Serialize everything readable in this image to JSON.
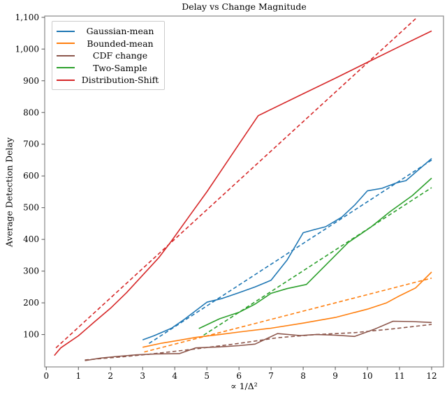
{
  "title": "Delay vs Change Magnitude",
  "chart_data": {
    "type": "line",
    "title": "Delay vs Change Magnitude",
    "xlabel": "∝ 1/Δ²",
    "ylabel": "Average Detection Delay",
    "xlim": [
      -0.05,
      12.37
    ],
    "ylim": [
      -2,
      1104
    ],
    "grid": false,
    "legend_position": "upper-left",
    "x_ticks": [
      {
        "value": 0,
        "label": "0"
      },
      {
        "value": 1,
        "label": "1"
      },
      {
        "value": 2,
        "label": "2"
      },
      {
        "value": 3,
        "label": "3"
      },
      {
        "value": 4,
        "label": "4"
      },
      {
        "value": 5,
        "label": "5"
      },
      {
        "value": 6,
        "label": "6"
      },
      {
        "value": 7,
        "label": "7"
      },
      {
        "value": 8,
        "label": "8"
      },
      {
        "value": 9,
        "label": "9"
      },
      {
        "value": 10,
        "label": "10"
      },
      {
        "value": 11,
        "label": "11"
      },
      {
        "value": 12,
        "label": "12"
      }
    ],
    "y_ticks": [
      {
        "value": 100,
        "label": "100"
      },
      {
        "value": 200,
        "label": "200"
      },
      {
        "value": 300,
        "label": "300"
      },
      {
        "value": 400,
        "label": "400"
      },
      {
        "value": 500,
        "label": "500"
      },
      {
        "value": 600,
        "label": "600"
      },
      {
        "value": 700,
        "label": "700"
      },
      {
        "value": 800,
        "label": "800"
      },
      {
        "value": 900,
        "label": "900"
      },
      {
        "value": 1000,
        "label": "1,000"
      },
      {
        "value": 1100,
        "label": "1,100"
      }
    ],
    "series": [
      {
        "name": "Gaussian-mean",
        "color": "#1f77b4",
        "solid": [
          [
            3.0,
            83
          ],
          [
            3.35,
            96
          ],
          [
            3.9,
            120
          ],
          [
            4.3,
            148
          ],
          [
            5.0,
            202
          ],
          [
            5.45,
            213
          ],
          [
            6.0,
            232
          ],
          [
            6.5,
            250
          ],
          [
            7.0,
            271
          ],
          [
            7.5,
            335
          ],
          [
            8.0,
            421
          ],
          [
            8.35,
            431
          ],
          [
            8.7,
            440
          ],
          [
            9.2,
            470
          ],
          [
            9.6,
            508
          ],
          [
            10.0,
            553
          ],
          [
            10.45,
            561
          ],
          [
            10.9,
            578
          ],
          [
            11.2,
            585
          ],
          [
            12.0,
            655
          ]
        ],
        "dashed": [
          [
            3.2,
            72
          ],
          [
            12.0,
            650
          ]
        ]
      },
      {
        "name": "Bounded-mean",
        "color": "#ff7f0e",
        "solid": [
          [
            3.0,
            60
          ],
          [
            3.6,
            73
          ],
          [
            4.2,
            83
          ],
          [
            4.65,
            91
          ],
          [
            5.4,
            100
          ],
          [
            6.0,
            108
          ],
          [
            7.0,
            120
          ],
          [
            8.0,
            136
          ],
          [
            9.0,
            154
          ],
          [
            10.0,
            180
          ],
          [
            10.6,
            200
          ],
          [
            11.0,
            222
          ],
          [
            11.5,
            247
          ],
          [
            12.0,
            297
          ]
        ],
        "dashed": [
          [
            3.05,
            45
          ],
          [
            12.0,
            278
          ]
        ]
      },
      {
        "name": "CDF change",
        "color": "#8c564b",
        "solid": [
          [
            1.2,
            18
          ],
          [
            1.7,
            26
          ],
          [
            2.2,
            31
          ],
          [
            2.8,
            36
          ],
          [
            3.4,
            39
          ],
          [
            4.15,
            40
          ],
          [
            4.65,
            58
          ],
          [
            5.4,
            61
          ],
          [
            6.0,
            65
          ],
          [
            6.5,
            70
          ],
          [
            7.2,
            103
          ],
          [
            7.9,
            97
          ],
          [
            8.4,
            100
          ],
          [
            9.0,
            98
          ],
          [
            9.6,
            94
          ],
          [
            10.2,
            116
          ],
          [
            10.8,
            142
          ],
          [
            11.4,
            141
          ],
          [
            12.0,
            138
          ]
        ],
        "dashed": [
          [
            1.2,
            20
          ],
          [
            2.4,
            30
          ],
          [
            3.2,
            38
          ],
          [
            4.6,
            54
          ],
          [
            6.0,
            72
          ],
          [
            7.2,
            90
          ],
          [
            8.4,
            100
          ],
          [
            9.6,
            106
          ],
          [
            10.8,
            118
          ],
          [
            12.0,
            132
          ]
        ]
      },
      {
        "name": "Two-Sample",
        "color": "#2ca02c",
        "solid": [
          [
            4.75,
            119
          ],
          [
            5.4,
            150
          ],
          [
            6.0,
            170
          ],
          [
            6.5,
            196
          ],
          [
            7.0,
            230
          ],
          [
            7.5,
            245
          ],
          [
            8.1,
            258
          ],
          [
            9.4,
            390
          ],
          [
            10.1,
            438
          ],
          [
            10.7,
            487
          ],
          [
            11.4,
            538
          ],
          [
            12.0,
            593
          ]
        ],
        "dashed": [
          [
            4.9,
            98
          ],
          [
            12.0,
            563
          ]
        ]
      },
      {
        "name": "Distribution-Shift",
        "color": "#d62728",
        "solid": [
          [
            0.25,
            34
          ],
          [
            0.45,
            58
          ],
          [
            0.62,
            70
          ],
          [
            1.0,
            96
          ],
          [
            1.5,
            140
          ],
          [
            2.0,
            183
          ],
          [
            2.5,
            232
          ],
          [
            3.0,
            287
          ],
          [
            3.5,
            342
          ],
          [
            3.9,
            395
          ],
          [
            4.5,
            480
          ],
          [
            5.0,
            550
          ],
          [
            5.5,
            625
          ],
          [
            6.0,
            700
          ],
          [
            6.6,
            790
          ],
          [
            8.0,
            859
          ],
          [
            9.0,
            908
          ],
          [
            10.0,
            958
          ],
          [
            11.0,
            1008
          ],
          [
            12.0,
            1057
          ]
        ],
        "dashed": [
          [
            0.3,
            58
          ],
          [
            11.55,
            1100
          ]
        ]
      }
    ]
  }
}
